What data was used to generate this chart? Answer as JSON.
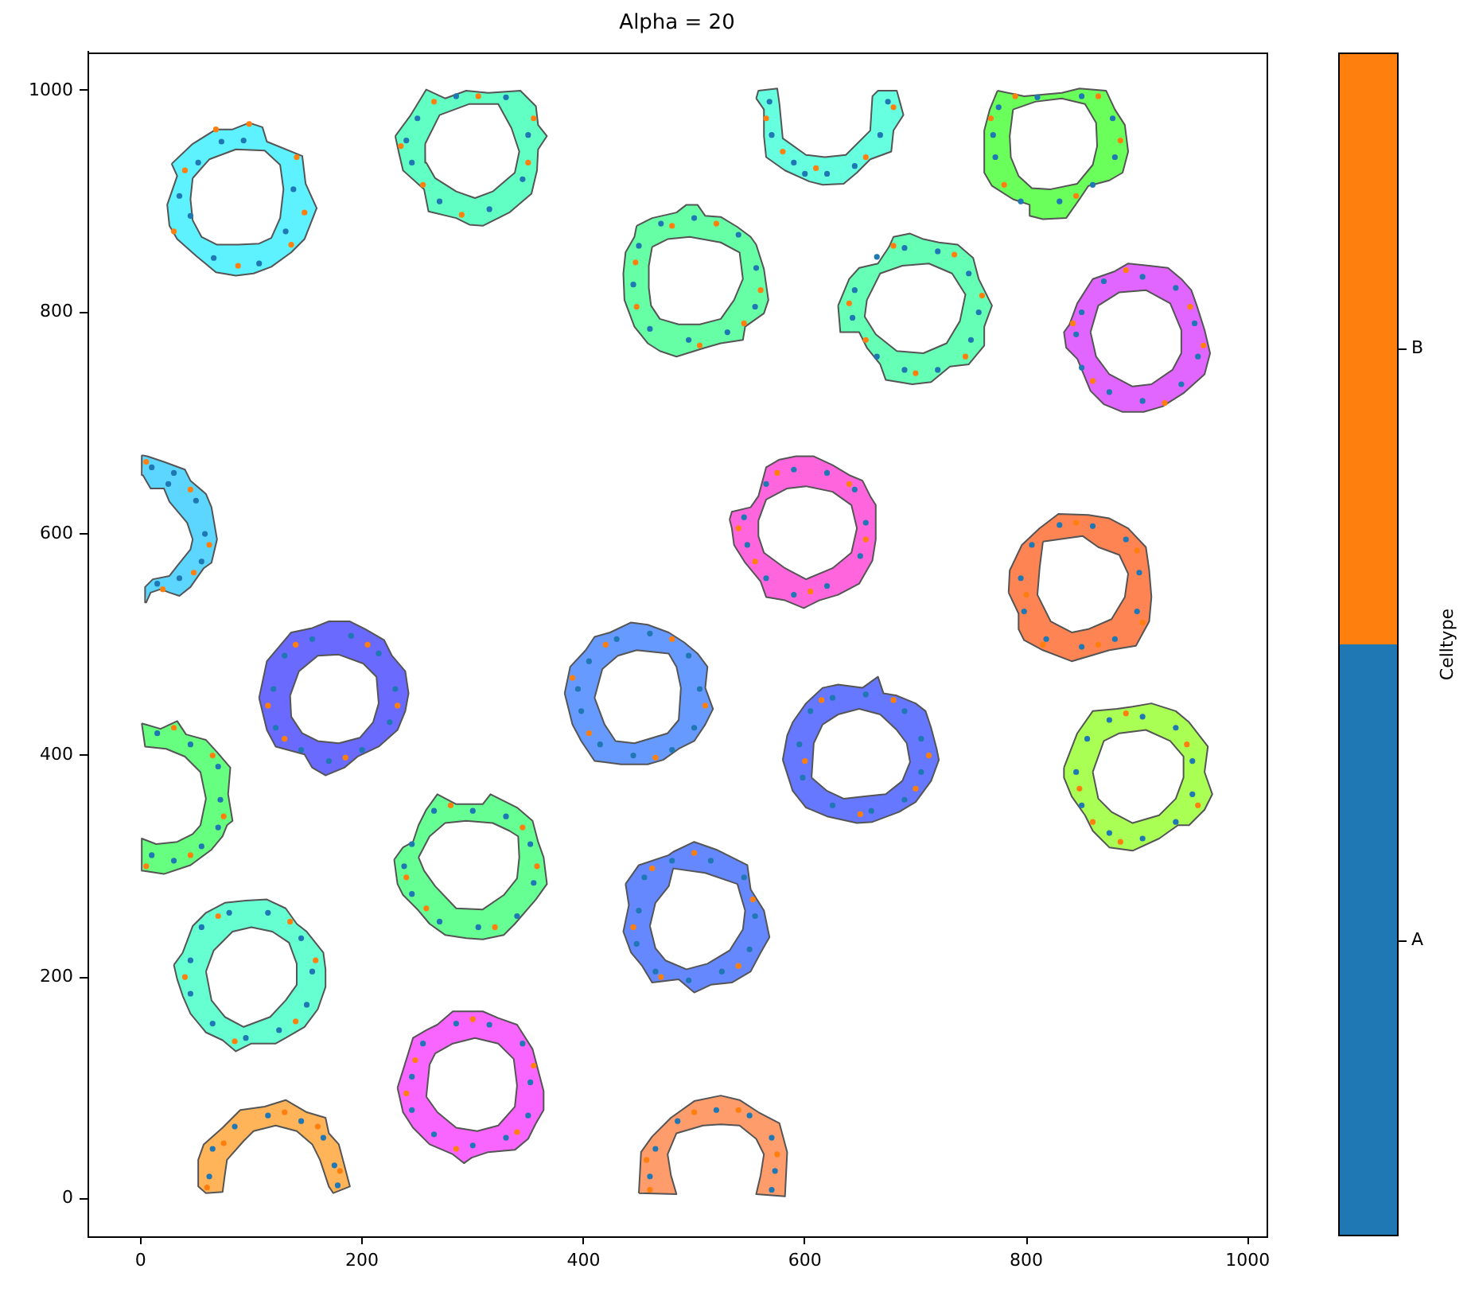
{
  "chart_data": {
    "type": "scatter",
    "title": "Alpha = 20",
    "xlim": [
      -48,
      1017
    ],
    "ylim": [
      -34,
      1035
    ],
    "xticks": [
      0,
      200,
      400,
      600,
      800,
      1000
    ],
    "yticks": [
      0,
      200,
      400,
      600,
      800,
      1000
    ],
    "legend": "right",
    "legend_title": "Celltype",
    "series": [
      {
        "type": "area",
        "color": "#5ef1ff",
        "x": [
          28,
          47,
          68,
          83,
          98,
          110,
          114,
          146,
          149,
          159,
          148,
          136,
          118,
          102,
          86,
          68,
          50,
          33,
          26,
          24,
          33,
          28,
          null,
          47,
          62,
          86,
          112,
          126,
          129,
          126,
          118,
          107,
          88,
          69,
          55,
          47,
          45,
          47
        ],
        "values": [
          934,
          952,
          965,
          965,
          971,
          967,
          954,
          941,
          916,
          894,
          866,
          854,
          841,
          835,
          833,
          836,
          851,
          866,
          878,
          897,
          923,
          934,
          null,
          921,
          938,
          947,
          946,
          933,
          911,
          885,
          867,
          862,
          861,
          861,
          868,
          883,
          902,
          921
        ]
      },
      {
        "type": "area",
        "color": "#62ffc4",
        "x": [
          230,
          244,
          258,
          275,
          294,
          314,
          343,
          357,
          359,
          367,
          359,
          358,
          353,
          333,
          309,
          297,
          285,
          260,
          256,
          237,
          233,
          230,
          null,
          257,
          270,
          297,
          323,
          335,
          342,
          338,
          318,
          302,
          285,
          266,
          258,
          257
        ],
        "values": [
          959,
          978,
          1001,
          993,
          1000,
          998,
          1000,
          986,
          969,
          959,
          947,
          928,
          907,
          890,
          878,
          879,
          885,
          891,
          911,
          928,
          945,
          959,
          null,
          952,
          978,
          988,
          988,
          966,
          945,
          926,
          909,
          903,
          909,
          921,
          935,
          952
        ]
      },
      {
        "type": "area",
        "color": "#66ffa6",
        "x": [
          448,
          458,
          462,
          484,
          493,
          503,
          510,
          524,
          539,
          551,
          556,
          563,
          567,
          563,
          546,
          544,
          524,
          510,
          484,
          469,
          458,
          446,
          437,
          436,
          438,
          446,
          448,
          null,
          462,
          476,
          496,
          524,
          541,
          544,
          536,
          524,
          505,
          486,
          469,
          461,
          459,
          459,
          462
        ],
        "values": [
          878,
          883,
          885,
          890,
          897,
          897,
          887,
          886,
          877,
          868,
          861,
          839,
          811,
          799,
          787,
          775,
          772,
          768,
          760,
          765,
          772,
          787,
          811,
          835,
          854,
          868,
          878,
          null,
          859,
          866,
          868,
          863,
          854,
          830,
          811,
          794,
          789,
          789,
          794,
          806,
          822,
          842,
          859
        ]
      },
      {
        "type": "area",
        "color": "#66ffe0",
        "x": [
          556,
          558,
          575,
          577,
          580,
          601,
          618,
          637,
          659,
          661,
          666,
          683,
          689,
          680,
          678,
          659,
          647,
          635,
          616,
          604,
          582,
          565,
          563,
          563,
          556
        ],
        "values": [
          993,
          1000,
          1002,
          988,
          957,
          942,
          940,
          942,
          964,
          995,
          1000,
          1000,
          978,
          964,
          945,
          938,
          926,
          916,
          915,
          918,
          928,
          940,
          959,
          983,
          993
        ]
      },
      {
        "type": "area",
        "color": "#6aff5a",
        "x": [
          774,
          798,
          832,
          848,
          872,
          880,
          889,
          892,
          887,
          875,
          856,
          848,
          836,
          815,
          803,
          803,
          788,
          769,
          762,
          762,
          767,
          774,
          null,
          788,
          808,
          832,
          853,
          863,
          864,
          860,
          846,
          822,
          805,
          793,
          786,
          785,
          788
        ],
        "values": [
          1000,
          995,
          998,
          1002,
          1000,
          983,
          969,
          945,
          926,
          919,
          914,
          902,
          885,
          884,
          887,
          897,
          902,
          914,
          926,
          964,
          983,
          1000,
          null,
          983,
          990,
          993,
          988,
          971,
          950,
          933,
          916,
          911,
          912,
          923,
          940,
          959,
          983
        ]
      },
      {
        "type": "area",
        "color": "#66ffb6",
        "x": [
          630,
          640,
          649,
          666,
          676,
          680,
          695,
          707,
          721,
          738,
          752,
          757,
          762,
          769,
          762,
          762,
          748,
          731,
          714,
          697,
          673,
          668,
          656,
          649,
          632,
          630,
          null,
          656,
          668,
          688,
          712,
          733,
          745,
          740,
          728,
          707,
          683,
          664,
          654,
          656
        ],
        "values": [
          806,
          830,
          840,
          844,
          859,
          868,
          871,
          866,
          863,
          861,
          849,
          830,
          820,
          806,
          787,
          770,
          753,
          751,
          737,
          735,
          739,
          753,
          768,
          782,
          782,
          806,
          null,
          811,
          835,
          842,
          844,
          835,
          816,
          792,
          772,
          763,
          765,
          780,
          796,
          811
        ]
      },
      {
        "type": "area",
        "color": "#e066ff",
        "x": [
          839,
          846,
          860,
          880,
          892,
          911,
          928,
          940,
          949,
          954,
          961,
          966,
          961,
          942,
          923,
          906,
          887,
          870,
          858,
          846,
          836,
          834,
          839,
          null,
          858,
          865,
          884,
          908,
          930,
          940,
          940,
          932,
          913,
          896,
          875,
          863,
          858
        ],
        "values": [
          789,
          808,
          830,
          837,
          844,
          842,
          840,
          830,
          820,
          806,
          784,
          763,
          744,
          727,
          715,
          710,
          710,
          717,
          729,
          758,
          768,
          782,
          789,
          null,
          782,
          806,
          818,
          820,
          808,
          784,
          763,
          748,
          735,
          733,
          744,
          760,
          782
        ]
      },
      {
        "type": "area",
        "color": "#5cd6ff",
        "x": [
          1,
          6,
          21,
          40,
          45,
          59,
          64,
          69,
          64,
          57,
          45,
          35,
          26,
          18,
          9,
          5,
          4,
          11,
          26,
          33,
          45,
          47,
          42,
          26,
          21,
          9,
          2,
          1
        ],
        "values": [
          671,
          670,
          665,
          658,
          648,
          636,
          624,
          595,
          574,
          569,
          552,
          544,
          547,
          550,
          547,
          538,
          552,
          559,
          562,
          571,
          586,
          595,
          610,
          629,
          641,
          641,
          653,
          671
        ]
      },
      {
        "type": "area",
        "color": "#6a6aff",
        "x": [
          107,
          114,
          136,
          155,
          170,
          189,
          203,
          220,
          227,
          239,
          242,
          239,
          232,
          215,
          196,
          184,
          167,
          155,
          148,
          122,
          114,
          107,
          null,
          135,
          143,
          160,
          179,
          201,
          213,
          215,
          210,
          198,
          179,
          160,
          146,
          136,
          135
        ],
        "values": [
          452,
          485,
          511,
          515,
          521,
          521,
          514,
          504,
          490,
          476,
          456,
          440,
          423,
          408,
          399,
          389,
          382,
          389,
          401,
          408,
          423,
          452,
          null,
          454,
          476,
          490,
          491,
          483,
          471,
          447,
          430,
          416,
          411,
          413,
          420,
          435,
          454
        ]
      },
      {
        "type": "area",
        "color": "#669aff",
        "x": [
          383,
          388,
          402,
          410,
          424,
          443,
          458,
          477,
          491,
          503,
          512,
          510,
          517,
          510,
          500,
          486,
          472,
          458,
          434,
          410,
          398,
          390,
          383,
          null,
          410,
          417,
          431,
          448,
          477,
          484,
          488,
          486,
          476,
          446,
          429,
          419,
          410
        ],
        "values": [
          456,
          480,
          495,
          507,
          511,
          520,
          518,
          511,
          502,
          492,
          480,
          461,
          442,
          428,
          413,
          406,
          396,
          392,
          392,
          395,
          413,
          428,
          456,
          null,
          452,
          478,
          490,
          495,
          492,
          480,
          461,
          432,
          420,
          411,
          413,
          428,
          452
        ]
      },
      {
        "type": "area",
        "color": "#66ff80",
        "x": [
          1,
          18,
          33,
          41,
          59,
          69,
          81,
          79,
          83,
          78,
          74,
          64,
          45,
          21,
          2,
          1,
          14,
          33,
          47,
          54,
          59,
          54,
          40,
          23,
          4,
          1
        ],
        "values": [
          429,
          424,
          431,
          419,
          414,
          403,
          389,
          365,
          341,
          337,
          327,
          315,
          301,
          293,
          296,
          325,
          320,
          322,
          329,
          337,
          361,
          385,
          399,
          406,
          408,
          429
        ]
      },
      {
        "type": "area",
        "color": "#66ff94",
        "x": [
          229,
          237,
          246,
          251,
          258,
          268,
          285,
          309,
          316,
          340,
          354,
          359,
          364,
          367,
          357,
          338,
          328,
          309,
          294,
          275,
          261,
          251,
          237,
          232,
          229,
          null,
          251,
          256,
          266,
          285,
          309,
          328,
          340,
          342,
          341,
          333,
          318,
          294,
          275,
          261,
          251
        ],
        "values": [
          306,
          317,
          322,
          337,
          351,
          365,
          356,
          356,
          365,
          353,
          341,
          322,
          308,
          284,
          270,
          248,
          238,
          234,
          235,
          238,
          248,
          260,
          274,
          284,
          306,
          null,
          308,
          296,
          282,
          262,
          261,
          274,
          289,
          308,
          327,
          332,
          339,
          341,
          339,
          327,
          308
        ]
      },
      {
        "type": "area",
        "color": "#6678ff",
        "x": [
          580,
          584,
          589,
          601,
          616,
          630,
          652,
          659,
          666,
          671,
          683,
          700,
          709,
          714,
          719,
          721,
          714,
          700,
          685,
          661,
          647,
          620,
          601,
          589,
          580,
          null,
          606,
          608,
          616,
          630,
          649,
          668,
          683,
          692,
          695,
          688,
          673,
          654,
          635,
          620,
          606
        ],
        "values": [
          396,
          418,
          430,
          447,
          461,
          464,
          461,
          466,
          471,
          456,
          454,
          447,
          440,
          425,
          406,
          396,
          377,
          358,
          349,
          340,
          339,
          345,
          353,
          368,
          396,
          null,
          380,
          411,
          428,
          437,
          442,
          437,
          423,
          411,
          394,
          377,
          365,
          363,
          361,
          368,
          380
        ]
      },
      {
        "type": "area",
        "color": "#ff66dd",
        "x": [
          532,
          534,
          551,
          558,
          565,
          577,
          592,
          608,
          625,
          640,
          652,
          659,
          664,
          664,
          661,
          649,
          630,
          613,
          599,
          582,
          565,
          560,
          546,
          536,
          534,
          532,
          null,
          558,
          565,
          584,
          601,
          625,
          642,
          647,
          642,
          625,
          601,
          582,
          563,
          558,
          558
        ],
        "values": [
          613,
          620,
          624,
          634,
          660,
          667,
          670,
          670,
          662,
          653,
          648,
          634,
          626,
          595,
          576,
          555,
          545,
          540,
          533,
          540,
          543,
          557,
          574,
          590,
          605,
          613,
          null,
          612,
          631,
          641,
          643,
          638,
          626,
          605,
          583,
          569,
          559,
          569,
          583,
          598,
          612
        ]
      },
      {
        "type": "area",
        "color": "#ff8454",
        "x": [
          784,
          785,
          796,
          812,
          829,
          856,
          875,
          892,
          908,
          911,
          913,
          911,
          899,
          875,
          858,
          841,
          815,
          798,
          793,
          793,
          784,
          null,
          815,
          851,
          865,
          884,
          892,
          889,
          877,
          856,
          841,
          822,
          810,
          812,
          815
        ],
        "values": [
          547,
          567,
          590,
          605,
          618,
          617,
          614,
          605,
          588,
          567,
          543,
          521,
          499,
          495,
          490,
          485,
          495,
          504,
          514,
          528,
          547,
          null,
          593,
          598,
          588,
          581,
          564,
          543,
          523,
          514,
          511,
          521,
          545,
          569,
          593
        ]
      },
      {
        "type": "area",
        "color": "#aaff55",
        "x": [
          834,
          846,
          860,
          882,
          896,
          913,
          935,
          947,
          964,
          961,
          968,
          961,
          947,
          937,
          920,
          896,
          875,
          865,
          860,
          853,
          841,
          834,
          834,
          null,
          860,
          870,
          884,
          908,
          930,
          942,
          942,
          935,
          920,
          896,
          877,
          865,
          860
        ],
        "values": [
          389,
          420,
          440,
          442,
          444,
          447,
          440,
          430,
          408,
          385,
          365,
          351,
          337,
          337,
          325,
          314,
          317,
          327,
          332,
          346,
          363,
          380,
          389,
          null,
          385,
          413,
          420,
          423,
          413,
          399,
          380,
          361,
          346,
          339,
          349,
          361,
          385
        ]
      },
      {
        "type": "area",
        "color": "#66ffd2",
        "x": [
          30,
          38,
          47,
          59,
          76,
          95,
          114,
          131,
          141,
          150,
          165,
          167,
          167,
          160,
          148,
          131,
          122,
          100,
          86,
          74,
          59,
          45,
          38,
          33,
          30,
          null,
          59,
          66,
          83,
          100,
          119,
          134,
          141,
          141,
          131,
          117,
          93,
          76,
          64,
          59
        ],
        "values": [
          211,
          222,
          246,
          258,
          267,
          269,
          270,
          262,
          248,
          241,
          222,
          207,
          191,
          171,
          155,
          145,
          140,
          140,
          133,
          143,
          150,
          167,
          183,
          198,
          211,
          null,
          205,
          224,
          241,
          245,
          241,
          231,
          212,
          193,
          179,
          164,
          155,
          164,
          179,
          205
        ]
      },
      {
        "type": "area",
        "color": "#f966ff",
        "x": [
          232,
          237,
          246,
          258,
          268,
          282,
          309,
          323,
          340,
          354,
          359,
          364,
          364,
          357,
          350,
          338,
          314,
          299,
          292,
          282,
          261,
          246,
          237,
          232,
          null,
          258,
          261,
          266,
          282,
          302,
          323,
          337,
          340,
          338,
          323,
          304,
          285,
          268,
          258
        ],
        "values": [
          100,
          116,
          145,
          152,
          157,
          169,
          169,
          163,
          157,
          135,
          116,
          97,
          80,
          68,
          54,
          44,
          42,
          37,
          32,
          40,
          49,
          64,
          78,
          100,
          null,
          92,
          121,
          131,
          140,
          145,
          140,
          126,
          102,
          83,
          66,
          61,
          64,
          78,
          92
        ]
      },
      {
        "type": "area",
        "color": "#ffb45a",
        "x": [
          52,
          59,
          74,
          76,
          78,
          93,
          102,
          122,
          141,
          155,
          162,
          170,
          174,
          189,
          184,
          179,
          170,
          167,
          150,
          131,
          112,
          90,
          74,
          57,
          52,
          52
        ],
        "values": [
          11,
          5,
          6,
          21,
          35,
          52,
          61,
          66,
          61,
          49,
          35,
          11,
          5,
          11,
          30,
          49,
          59,
          73,
          78,
          89,
          83,
          80,
          64,
          49,
          35,
          11
        ]
      },
      {
        "type": "area",
        "color": "#ff9c6c",
        "x": [
          450,
          452,
          462,
          479,
          500,
          524,
          541,
          558,
          577,
          584,
          582,
          556,
          560,
          563,
          556,
          541,
          524,
          508,
          484,
          476,
          479,
          484,
          450
        ],
        "values": [
          5,
          42,
          56,
          73,
          88,
          93,
          89,
          78,
          68,
          42,
          2,
          4,
          21,
          40,
          54,
          66,
          67,
          66,
          59,
          40,
          21,
          4,
          5
        ]
      },
      {
        "type": "area",
        "color": "#6688ff",
        "x": [
          438,
          450,
          477,
          481,
          500,
          520,
          534,
          548,
          551,
          563,
          568,
          560,
          551,
          534,
          515,
          500,
          486,
          462,
          453,
          443,
          436,
          441,
          438,
          null,
          460,
          465,
          477,
          481,
          510,
          539,
          546,
          544,
          532,
          512,
          493,
          474,
          465,
          460
        ],
        "values": [
          284,
          301,
          310,
          313,
          322,
          315,
          308,
          301,
          279,
          260,
          236,
          222,
          205,
          195,
          193,
          186,
          198,
          195,
          210,
          222,
          241,
          265,
          284,
          null,
          246,
          267,
          282,
          298,
          294,
          284,
          260,
          243,
          224,
          212,
          207,
          215,
          226,
          246
        ]
      },
      {
        "name": "A",
        "color": "#1f77b4",
        "marker": "circle",
        "x": [
          73,
          52,
          45,
          66,
          107,
          131,
          138,
          93,
          35,
          250,
          285,
          330,
          350,
          345,
          315,
          270,
          245,
          240,
          450,
          470,
          500,
          540,
          556,
          555,
          530,
          495,
          460,
          445,
          568,
          570,
          590,
          620,
          645,
          668,
          675,
          600,
          775,
          810,
          850,
          878,
          880,
          860,
          830,
          795,
          772,
          770,
          645,
          665,
          690,
          720,
          748,
          757,
          750,
          720,
          690,
          665,
          643,
          850,
          870,
          905,
          935,
          952,
          955,
          940,
          905,
          875,
          850,
          845,
          10,
          30,
          50,
          58,
          55,
          35,
          15,
          25,
          120,
          130,
          155,
          190,
          215,
          230,
          225,
          200,
          170,
          145,
          122,
          395,
          405,
          430,
          460,
          495,
          505,
          500,
          480,
          445,
          415,
          398,
          15,
          45,
          70,
          72,
          70,
          55,
          30,
          10,
          245,
          265,
          300,
          330,
          352,
          355,
          340,
          305,
          270,
          245,
          238,
          595,
          605,
          625,
          655,
          690,
          705,
          705,
          690,
          660,
          625,
          598,
          545,
          565,
          590,
          620,
          645,
          655,
          650,
          620,
          590,
          565,
          548,
          795,
          805,
          830,
          860,
          890,
          902,
          900,
          880,
          850,
          818,
          798,
          845,
          855,
          875,
          905,
          935,
          950,
          950,
          935,
          905,
          875,
          850,
          45,
          55,
          80,
          115,
          145,
          155,
          150,
          125,
          95,
          65,
          45,
          245,
          255,
          285,
          315,
          345,
          352,
          350,
          330,
          300,
          265,
          245,
          62,
          65,
          85,
          115,
          145,
          165,
          175,
          178,
          460,
          465,
          485,
          520,
          550,
          570,
          573,
          570,
          450,
          455,
          480,
          515,
          545,
          555,
          550,
          525,
          495,
          465,
          448
        ],
        "values": [
          954,
          935,
          887,
          849,
          844,
          873,
          911,
          955,
          905,
          975,
          995,
          994,
          960,
          920,
          893,
          900,
          935,
          955,
          860,
          880,
          885,
          870,
          840,
          805,
          782,
          775,
          785,
          825,
          990,
          960,
          935,
          925,
          932,
          960,
          990,
          925,
          985,
          994,
          995,
          975,
          940,
          915,
          900,
          900,
          940,
          960,
          820,
          850,
          858,
          855,
          835,
          800,
          775,
          748,
          748,
          760,
          795,
          800,
          828,
          832,
          822,
          790,
          760,
          735,
          720,
          728,
          750,
          780,
          660,
          655,
          630,
          600,
          575,
          560,
          555,
          645,
          460,
          490,
          505,
          508,
          492,
          460,
          430,
          405,
          395,
          405,
          425,
          460,
          485,
          505,
          510,
          490,
          460,
          425,
          405,
          400,
          410,
          440,
          420,
          410,
          390,
          360,
          335,
          318,
          305,
          310,
          320,
          350,
          350,
          345,
          320,
          285,
          255,
          245,
          250,
          275,
          300,
          410,
          440,
          452,
          455,
          440,
          415,
          385,
          360,
          350,
          355,
          380,
          615,
          645,
          658,
          655,
          640,
          610,
          580,
          553,
          545,
          560,
          590,
          560,
          590,
          608,
          607,
          595,
          565,
          530,
          505,
          498,
          505,
          530,
          385,
          415,
          432,
          435,
          425,
          395,
          365,
          340,
          325,
          330,
          355,
          215,
          245,
          258,
          258,
          235,
          205,
          175,
          152,
          145,
          158,
          185,
          110,
          140,
          158,
          157,
          140,
          105,
          75,
          55,
          48,
          58,
          80,
          20,
          45,
          65,
          75,
          70,
          55,
          30,
          12,
          20,
          45,
          70,
          80,
          75,
          55,
          25,
          8,
          260,
          290,
          305,
          305,
          290,
          255,
          225,
          205,
          197,
          205,
          230
        ]
      },
      {
        "name": "B",
        "color": "#ff7f0e",
        "marker": "circle",
        "x": [
          68,
          98,
          40,
          30,
          88,
          136,
          148,
          141,
          265,
          305,
          355,
          350,
          290,
          255,
          235,
          480,
          520,
          560,
          545,
          505,
          448,
          447,
          565,
          610,
          655,
          680,
          580,
          790,
          865,
          885,
          845,
          780,
          768,
          680,
          735,
          760,
          745,
          700,
          655,
          640,
          890,
          948,
          960,
          925,
          860,
          842,
          5,
          45,
          62,
          48,
          20,
          140,
          205,
          232,
          185,
          130,
          115,
          420,
          480,
          510,
          465,
          405,
          390,
          30,
          65,
          75,
          45,
          5,
          280,
          345,
          358,
          320,
          258,
          240,
          615,
          680,
          712,
          650,
          600,
          700,
          575,
          640,
          655,
          605,
          555,
          540,
          800,
          845,
          900,
          905,
          865,
          815,
          848,
          890,
          945,
          955,
          885,
          860,
          70,
          135,
          158,
          140,
          85,
          40,
          248,
          300,
          355,
          340,
          285,
          240,
          60,
          75,
          130,
          160,
          180,
          457,
          500,
          540,
          575,
          460,
          462,
          500,
          553,
          540,
          470,
          445
        ],
        "values": [
          965,
          970,
          928,
          873,
          842,
          861,
          890,
          940,
          990,
          995,
          975,
          935,
          888,
          915,
          950,
          878,
          880,
          820,
          790,
          770,
          805,
          845,
          975,
          930,
          940,
          985,
          945,
          995,
          995,
          955,
          905,
          915,
          975,
          860,
          852,
          815,
          760,
          745,
          775,
          808,
          838,
          805,
          770,
          718,
          738,
          790,
          665,
          640,
          590,
          565,
          550,
          500,
          500,
          445,
          398,
          415,
          445,
          500,
          505,
          445,
          398,
          420,
          470,
          425,
          400,
          345,
          310,
          300,
          355,
          335,
          300,
          245,
          262,
          290,
          450,
          450,
          400,
          347,
          395,
          370,
          655,
          645,
          595,
          548,
          575,
          605,
          545,
          610,
          585,
          520,
          500,
          500,
          370,
          438,
          410,
          355,
          322,
          340,
          255,
          250,
          215,
          160,
          142,
          200,
          125,
          162,
          120,
          60,
          45,
          95,
          10,
          50,
          78,
          65,
          25,
          35,
          78,
          80,
          40,
          8,
          298,
          312,
          270,
          210,
          200,
          245
        ]
      }
    ]
  }
}
